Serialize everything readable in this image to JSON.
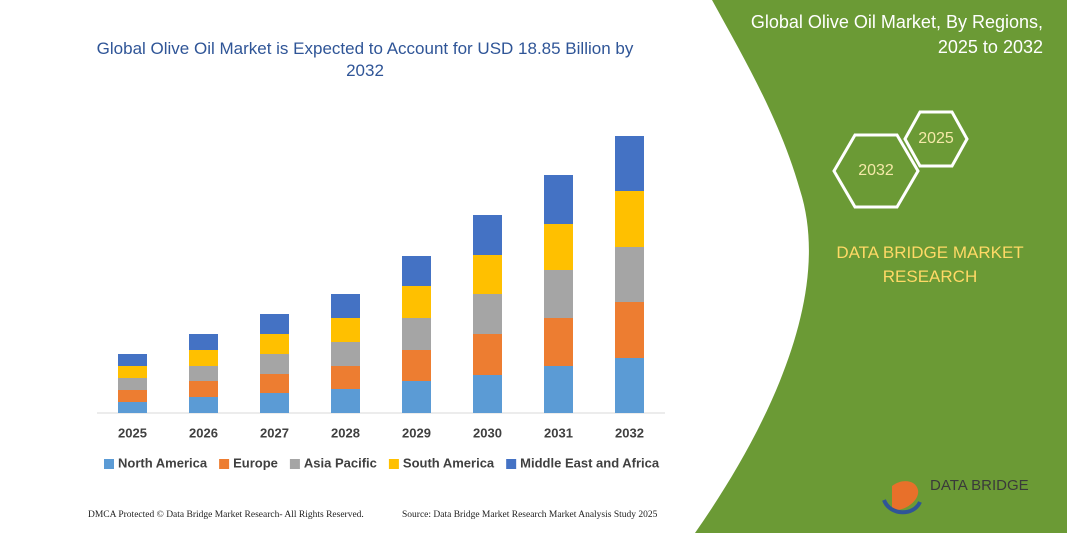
{
  "chart_data": {
    "type": "bar",
    "stacked": true,
    "title": "Global Olive Oil Market is Expected to Account for USD 18.85 Billion by 2032",
    "categories": [
      "2025",
      "2026",
      "2027",
      "2028",
      "2029",
      "2030",
      "2031",
      "2032"
    ],
    "series": [
      {
        "name": "North America",
        "color": "#5b9bd5",
        "values": [
          11,
          16,
          20,
          24,
          32,
          38,
          47,
          55
        ]
      },
      {
        "name": "Europe",
        "color": "#ed7d31",
        "values": [
          12,
          16,
          19,
          23,
          31,
          41,
          48,
          56
        ]
      },
      {
        "name": "Asia Pacific",
        "color": "#a5a5a5",
        "values": [
          12,
          15,
          20,
          24,
          32,
          40,
          48,
          55
        ]
      },
      {
        "name": "South America",
        "color": "#ffc000",
        "values": [
          12,
          16,
          20,
          24,
          32,
          39,
          46,
          56
        ]
      },
      {
        "name": "Middle East and Africa",
        "color": "#4472c4",
        "values": [
          12,
          16,
          20,
          24,
          30,
          40,
          49,
          55
        ]
      }
    ],
    "legend": "bottom"
  },
  "panel": {
    "title": "Global Olive Oil Market, By Regions, 2025 to 2032",
    "hexagons": [
      "2025",
      "2032"
    ],
    "brand": "DATA BRIDGE MARKET RESEARCH"
  },
  "logo": {
    "text": "DATA BRIDGE"
  },
  "footer": {
    "copyright": "DMCA Protected © Data Bridge Market Research- All Rights Reserved.",
    "source": "Source: Data Bridge Market Research  Market Analysis Study 2025"
  }
}
